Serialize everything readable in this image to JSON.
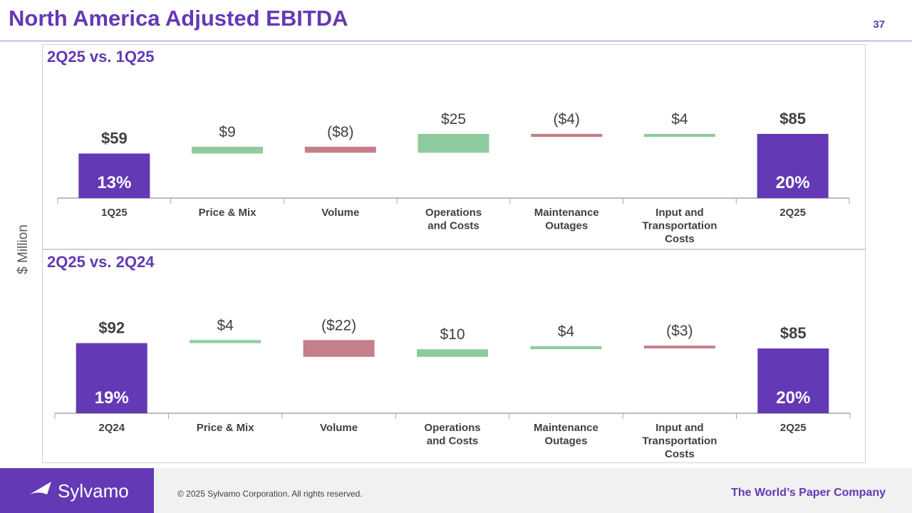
{
  "page": {
    "title": "North America Adjusted EBITDA",
    "page_number": "37",
    "y_axis_label": "$ Million"
  },
  "colors": {
    "total": "#6339b5",
    "positive": "#8fcb9e",
    "negative": "#c47f8b",
    "label": "#404040",
    "axis": "#a6a6a6"
  },
  "footer": {
    "brand": "Sylvamo",
    "copyright": "© 2025 Sylvamo Corporation. All rights reserved.",
    "tagline": "The World’s Paper Company"
  },
  "chart_data": [
    {
      "type": "bar",
      "subtype": "waterfall",
      "title": "2Q25 vs. 1Q25",
      "ylabel": "$ Million",
      "categories": [
        "1Q25",
        "Price & Mix",
        "Volume",
        "Operations and Costs",
        "Maintenance Outages",
        "Input and Transportation Costs",
        "2Q25"
      ],
      "category_lines": [
        [
          "1Q25"
        ],
        [
          "Price & Mix"
        ],
        [
          "Volume"
        ],
        [
          "Operations",
          "and Costs"
        ],
        [
          "Maintenance",
          "Outages"
        ],
        [
          "Input and",
          "Transportation",
          "Costs"
        ],
        [
          "2Q25"
        ]
      ],
      "values": [
        59,
        9,
        -8,
        25,
        -4,
        4,
        85
      ],
      "value_labels": [
        "$59",
        "$9",
        "($8)",
        "$25",
        "($4)",
        "$4",
        "$85"
      ],
      "kinds": [
        "total",
        "delta",
        "delta",
        "delta",
        "delta",
        "delta",
        "total"
      ],
      "margins": [
        "13%",
        "",
        "",
        "",
        "",
        "",
        "20%"
      ]
    },
    {
      "type": "bar",
      "subtype": "waterfall",
      "title": "2Q25 vs. 2Q24",
      "ylabel": "$ Million",
      "categories": [
        "2Q24",
        "Price & Mix",
        "Volume",
        "Operations and Costs",
        "Maintenance Outages",
        "Input and Transportation Costs",
        "2Q25"
      ],
      "category_lines": [
        [
          "2Q24"
        ],
        [
          "Price & Mix"
        ],
        [
          "Volume"
        ],
        [
          "Operations",
          "and Costs"
        ],
        [
          "Maintenance",
          "Outages"
        ],
        [
          "Input and",
          "Transportation",
          "Costs"
        ],
        [
          "2Q25"
        ]
      ],
      "values": [
        92,
        4,
        -22,
        10,
        4,
        -3,
        85
      ],
      "value_labels": [
        "$92",
        "$4",
        "($22)",
        "$10",
        "$4",
        "($3)",
        "$85"
      ],
      "kinds": [
        "total",
        "delta",
        "delta",
        "delta",
        "delta",
        "delta",
        "total"
      ],
      "margins": [
        "19%",
        "",
        "",
        "",
        "",
        "",
        "20%"
      ]
    }
  ]
}
